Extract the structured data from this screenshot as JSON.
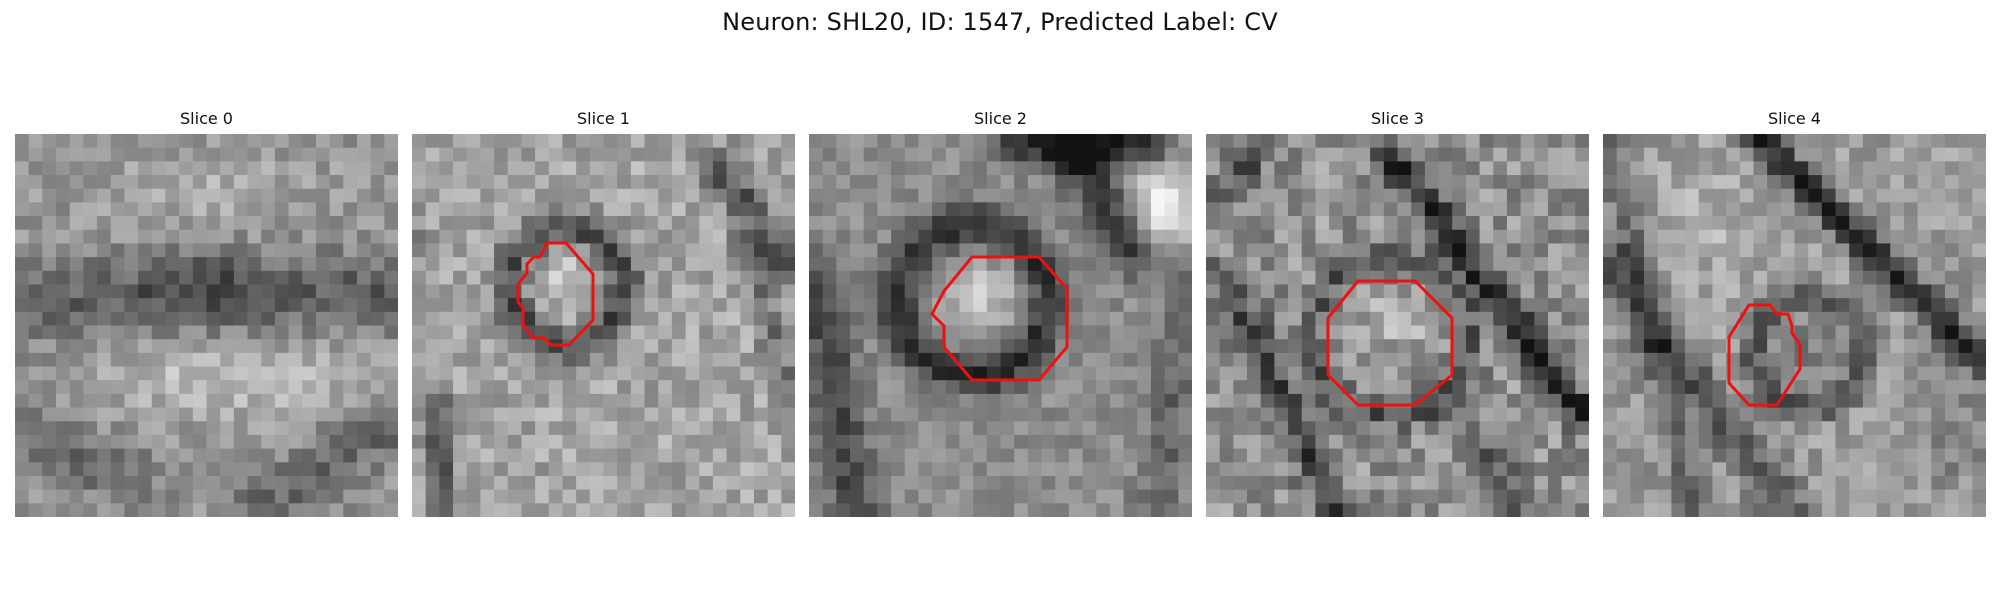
{
  "figure": {
    "title": "Neuron: SHL20, ID: 1547, Predicted Label: CV"
  },
  "colors": {
    "contour": "#ee1111",
    "colormap": "gray"
  },
  "slices": [
    {
      "title": "Slice 0",
      "has_contour": false,
      "seed": 17
    },
    {
      "title": "Slice 1",
      "has_contour": true,
      "seed": 53
    },
    {
      "title": "Slice 2",
      "has_contour": true,
      "seed": 89
    },
    {
      "title": "Slice 3",
      "has_contour": true,
      "seed": 131
    },
    {
      "title": "Slice 4",
      "has_contour": true,
      "seed": 199
    }
  ]
}
